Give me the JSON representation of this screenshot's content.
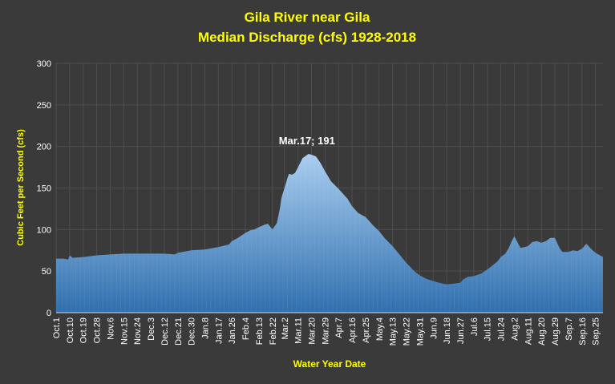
{
  "chart_data": {
    "type": "area",
    "title": "Gila River near Gila",
    "subtitle": "Median Discharge (cfs) 1928-2018",
    "xlabel": "Water Year Date",
    "ylabel": "Cubic Feet per Second (cfs)",
    "ylim": [
      0,
      300
    ],
    "yticks": [
      0,
      50,
      100,
      150,
      200,
      250,
      300
    ],
    "grid": true,
    "legend": "none",
    "colors": {
      "background": "#3a3a3a",
      "fill_top": "#a9cdef",
      "fill_bottom": "#2f6fae",
      "grid": "#4e4e4e",
      "title": "#ffff00",
      "labels": "#ffffff"
    },
    "xticks": [
      "Oct.1",
      "Oct.10",
      "Oct.19",
      "Oct.28",
      "Nov.6",
      "Nov.15",
      "Nov.24",
      "Dec.3",
      "Dec.12",
      "Dec.21",
      "Dec.30",
      "Jan.8",
      "Jan.17",
      "Jan.26",
      "Feb.4",
      "Feb.13",
      "Feb.22",
      "Mar.2",
      "Mar.11",
      "Mar.20",
      "Mar.29",
      "Apr.7",
      "Apr.16",
      "Apr.25",
      "May.4",
      "May.13",
      "May.22",
      "May.31",
      "Jun.9",
      "Jun.18",
      "Jun.27",
      "Jul.6",
      "Jul.15",
      "Jul.24",
      "Aug.2",
      "Aug.11",
      "Aug.20",
      "Aug.29",
      "Sep.7",
      "Sep.16",
      "Sep.25"
    ],
    "xtick_days": [
      1,
      10,
      19,
      28,
      37,
      46,
      55,
      64,
      73,
      82,
      91,
      100,
      109,
      118,
      127,
      136,
      145,
      153,
      162,
      171,
      180,
      189,
      198,
      207,
      216,
      225,
      234,
      243,
      252,
      261,
      270,
      279,
      288,
      297,
      306,
      315,
      324,
      333,
      342,
      351,
      360
    ],
    "series": [
      {
        "days": [
          1,
          6,
          9,
          10,
          12,
          20,
          28,
          37,
          46,
          55,
          64,
          73,
          80,
          82,
          88,
          91,
          100,
          109,
          116,
          118,
          122,
          127,
          130,
          133,
          136,
          140,
          142,
          145,
          148,
          150,
          151,
          153,
          155,
          156,
          158,
          160,
          162,
          165,
          169,
          171,
          174,
          177,
          180,
          184,
          189,
          195,
          198,
          202,
          207,
          212,
          216,
          220,
          225,
          230,
          234,
          240,
          243,
          247,
          252,
          256,
          261,
          266,
          270,
          272,
          275,
          279,
          284,
          288,
          291,
          295,
          297,
          300,
          302,
          304,
          306,
          308,
          310,
          313,
          315,
          318,
          321,
          324,
          327,
          330,
          333,
          336,
          338,
          342,
          345,
          348,
          351,
          354,
          357,
          360,
          365
        ],
        "values": [
          65,
          65,
          64,
          69,
          66,
          67,
          69,
          70,
          71,
          71,
          71,
          71,
          70,
          72,
          74,
          75,
          76,
          79,
          82,
          86,
          90,
          96,
          99,
          100,
          103,
          106,
          107,
          100,
          108,
          126,
          138,
          150,
          162,
          167,
          166,
          168,
          175,
          186,
          191,
          190,
          188,
          180,
          170,
          158,
          149,
          137,
          128,
          120,
          115,
          105,
          98,
          89,
          80,
          69,
          60,
          49,
          45,
          41,
          38,
          36,
          34,
          35,
          36,
          40,
          43,
          44,
          47,
          52,
          56,
          62,
          67,
          71,
          77,
          85,
          92,
          85,
          78,
          79,
          80,
          85,
          86,
          84,
          86,
          90,
          90,
          78,
          73,
          73,
          75,
          74,
          77,
          83,
          77,
          72,
          67
        ]
      }
    ],
    "annotations": [
      {
        "day": 169,
        "value": 191,
        "text": "Mar.17; 191"
      }
    ]
  }
}
